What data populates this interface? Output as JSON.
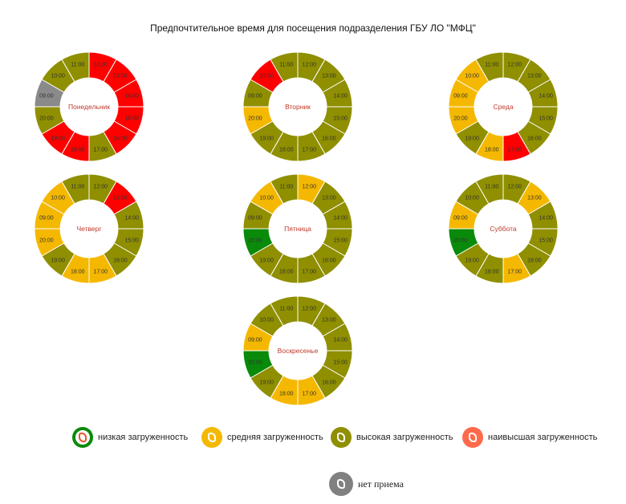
{
  "chart_data": {
    "type": "donut",
    "title": "Предпочтительное время для посещения подразделения ГБУ ЛО \"МФЦ\"",
    "colors": {
      "low": "#0a8a0a",
      "medium": "#f5b800",
      "high": "#8f8f00",
      "highest": "#ff0000",
      "closed": "#8a8a8a"
    },
    "charts": [
      {
        "day": "Понедельник",
        "slots": [
          {
            "time": "12:00",
            "load": "highest"
          },
          {
            "time": "13:00",
            "load": "highest"
          },
          {
            "time": "14:00",
            "load": "highest"
          },
          {
            "time": "15:00",
            "load": "highest"
          },
          {
            "time": "16:00",
            "load": "highest"
          },
          {
            "time": "17:00",
            "load": "high"
          },
          {
            "time": "18:00",
            "load": "highest"
          },
          {
            "time": "19:00",
            "load": "highest"
          },
          {
            "time": "20:00",
            "load": "high"
          },
          {
            "time": "09:00",
            "load": "closed"
          },
          {
            "time": "10:00",
            "load": "high"
          },
          {
            "time": "11:00",
            "load": "high"
          }
        ]
      },
      {
        "day": "Вторник",
        "slots": [
          {
            "time": "12:00",
            "load": "high"
          },
          {
            "time": "13:00",
            "load": "high"
          },
          {
            "time": "14:00",
            "load": "high"
          },
          {
            "time": "15:00",
            "load": "high"
          },
          {
            "time": "16:00",
            "load": "high"
          },
          {
            "time": "17:00",
            "load": "high"
          },
          {
            "time": "18:00",
            "load": "high"
          },
          {
            "time": "19:00",
            "load": "high"
          },
          {
            "time": "20:00",
            "load": "medium"
          },
          {
            "time": "09:00",
            "load": "high"
          },
          {
            "time": "10:00",
            "load": "highest"
          },
          {
            "time": "11:00",
            "load": "high"
          }
        ]
      },
      {
        "day": "Среда",
        "slots": [
          {
            "time": "12:00",
            "load": "high"
          },
          {
            "time": "13:00",
            "load": "high"
          },
          {
            "time": "14:00",
            "load": "high"
          },
          {
            "time": "15:00",
            "load": "high"
          },
          {
            "time": "16:00",
            "load": "high"
          },
          {
            "time": "17:00",
            "load": "highest"
          },
          {
            "time": "18:00",
            "load": "medium"
          },
          {
            "time": "19:00",
            "load": "high"
          },
          {
            "time": "20:00",
            "load": "medium"
          },
          {
            "time": "09:00",
            "load": "medium"
          },
          {
            "time": "10:00",
            "load": "medium"
          },
          {
            "time": "11:00",
            "load": "high"
          }
        ]
      },
      {
        "day": "Четверг",
        "slots": [
          {
            "time": "12:00",
            "load": "high"
          },
          {
            "time": "13:00",
            "load": "highest"
          },
          {
            "time": "14:00",
            "load": "high"
          },
          {
            "time": "15:00",
            "load": "high"
          },
          {
            "time": "16:00",
            "load": "high"
          },
          {
            "time": "17:00",
            "load": "medium"
          },
          {
            "time": "18:00",
            "load": "medium"
          },
          {
            "time": "19:00",
            "load": "high"
          },
          {
            "time": "20:00",
            "load": "medium"
          },
          {
            "time": "09:00",
            "load": "medium"
          },
          {
            "time": "10:00",
            "load": "medium"
          },
          {
            "time": "11:00",
            "load": "high"
          }
        ]
      },
      {
        "day": "Пятница",
        "slots": [
          {
            "time": "12:00",
            "load": "medium"
          },
          {
            "time": "13:00",
            "load": "high"
          },
          {
            "time": "14:00",
            "load": "high"
          },
          {
            "time": "15:00",
            "load": "high"
          },
          {
            "time": "16:00",
            "load": "high"
          },
          {
            "time": "17:00",
            "load": "high"
          },
          {
            "time": "18:00",
            "load": "high"
          },
          {
            "time": "19:00",
            "load": "high"
          },
          {
            "time": "20:00",
            "load": "low"
          },
          {
            "time": "09:00",
            "load": "high"
          },
          {
            "time": "10:00",
            "load": "medium"
          },
          {
            "time": "11:00",
            "load": "high"
          }
        ]
      },
      {
        "day": "Суббота",
        "slots": [
          {
            "time": "12:00",
            "load": "high"
          },
          {
            "time": "13:00",
            "load": "medium"
          },
          {
            "time": "14:00",
            "load": "high"
          },
          {
            "time": "15:00",
            "load": "high"
          },
          {
            "time": "16:00",
            "load": "high"
          },
          {
            "time": "17:00",
            "load": "medium"
          },
          {
            "time": "18:00",
            "load": "high"
          },
          {
            "time": "19:00",
            "load": "high"
          },
          {
            "time": "20:00",
            "load": "low"
          },
          {
            "time": "09:00",
            "load": "medium"
          },
          {
            "time": "10:00",
            "load": "high"
          },
          {
            "time": "11:00",
            "load": "high"
          }
        ]
      },
      {
        "day": "Воскресенье",
        "slots": [
          {
            "time": "12:00",
            "load": "high"
          },
          {
            "time": "13:00",
            "load": "high"
          },
          {
            "time": "14:00",
            "load": "high"
          },
          {
            "time": "15:00",
            "load": "high"
          },
          {
            "time": "16:00",
            "load": "high"
          },
          {
            "time": "17:00",
            "load": "medium"
          },
          {
            "time": "18:00",
            "load": "medium"
          },
          {
            "time": "19:00",
            "load": "high"
          },
          {
            "time": "20:00",
            "load": "low"
          },
          {
            "time": "09:00",
            "load": "medium"
          },
          {
            "time": "10:00",
            "load": "high"
          },
          {
            "time": "11:00",
            "load": "high"
          }
        ]
      }
    ],
    "legend": [
      {
        "key": "low",
        "label": "низкая загруженность"
      },
      {
        "key": "medium",
        "label": "средняя загруженность"
      },
      {
        "key": "high",
        "label": "высокая загруженность"
      },
      {
        "key": "highest",
        "label": "наивысшая загруженность"
      },
      {
        "key": "closed",
        "label": "нет приема"
      }
    ]
  }
}
